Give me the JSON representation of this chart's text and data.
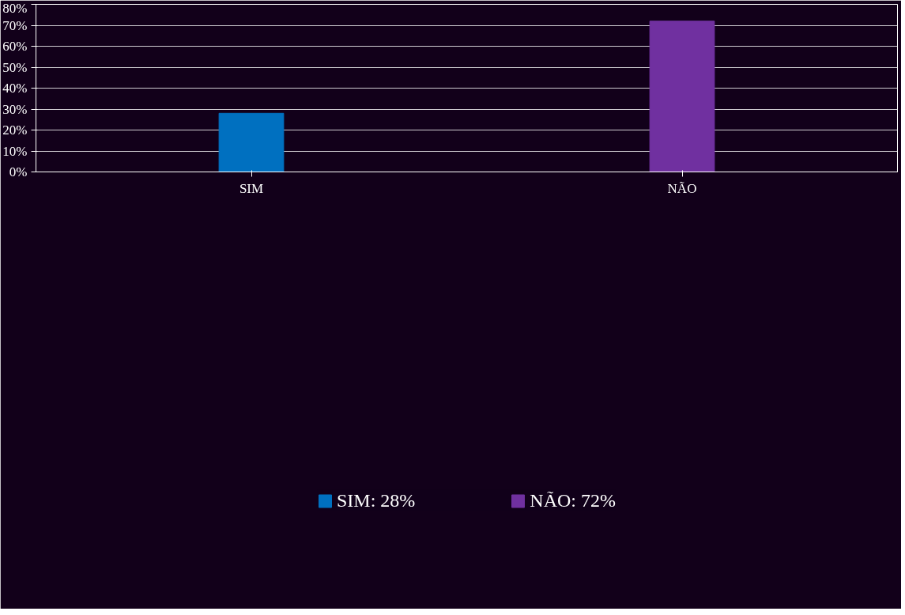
{
  "chart_data": {
    "type": "bar",
    "categories": [
      "SIM",
      "NÃO"
    ],
    "series": [
      {
        "name": "SIM: 28%",
        "color": "#0070c0",
        "values": [
          28,
          null
        ]
      },
      {
        "name": "NÃO: 72%",
        "color": "#7030a0",
        "values": [
          null,
          72
        ]
      }
    ],
    "stacked": true,
    "ylim": [
      0,
      80
    ],
    "yticks": [
      {
        "value": 0,
        "label": "0%"
      },
      {
        "value": 10,
        "label": "10%"
      },
      {
        "value": 20,
        "label": "20%"
      },
      {
        "value": 30,
        "label": "30%"
      },
      {
        "value": 40,
        "label": "40%"
      },
      {
        "value": 50,
        "label": "50%"
      },
      {
        "value": 60,
        "label": "60%"
      },
      {
        "value": 70,
        "label": "70%"
      },
      {
        "value": 80,
        "label": "80%"
      }
    ],
    "grid": "y",
    "legend": "bottom"
  }
}
